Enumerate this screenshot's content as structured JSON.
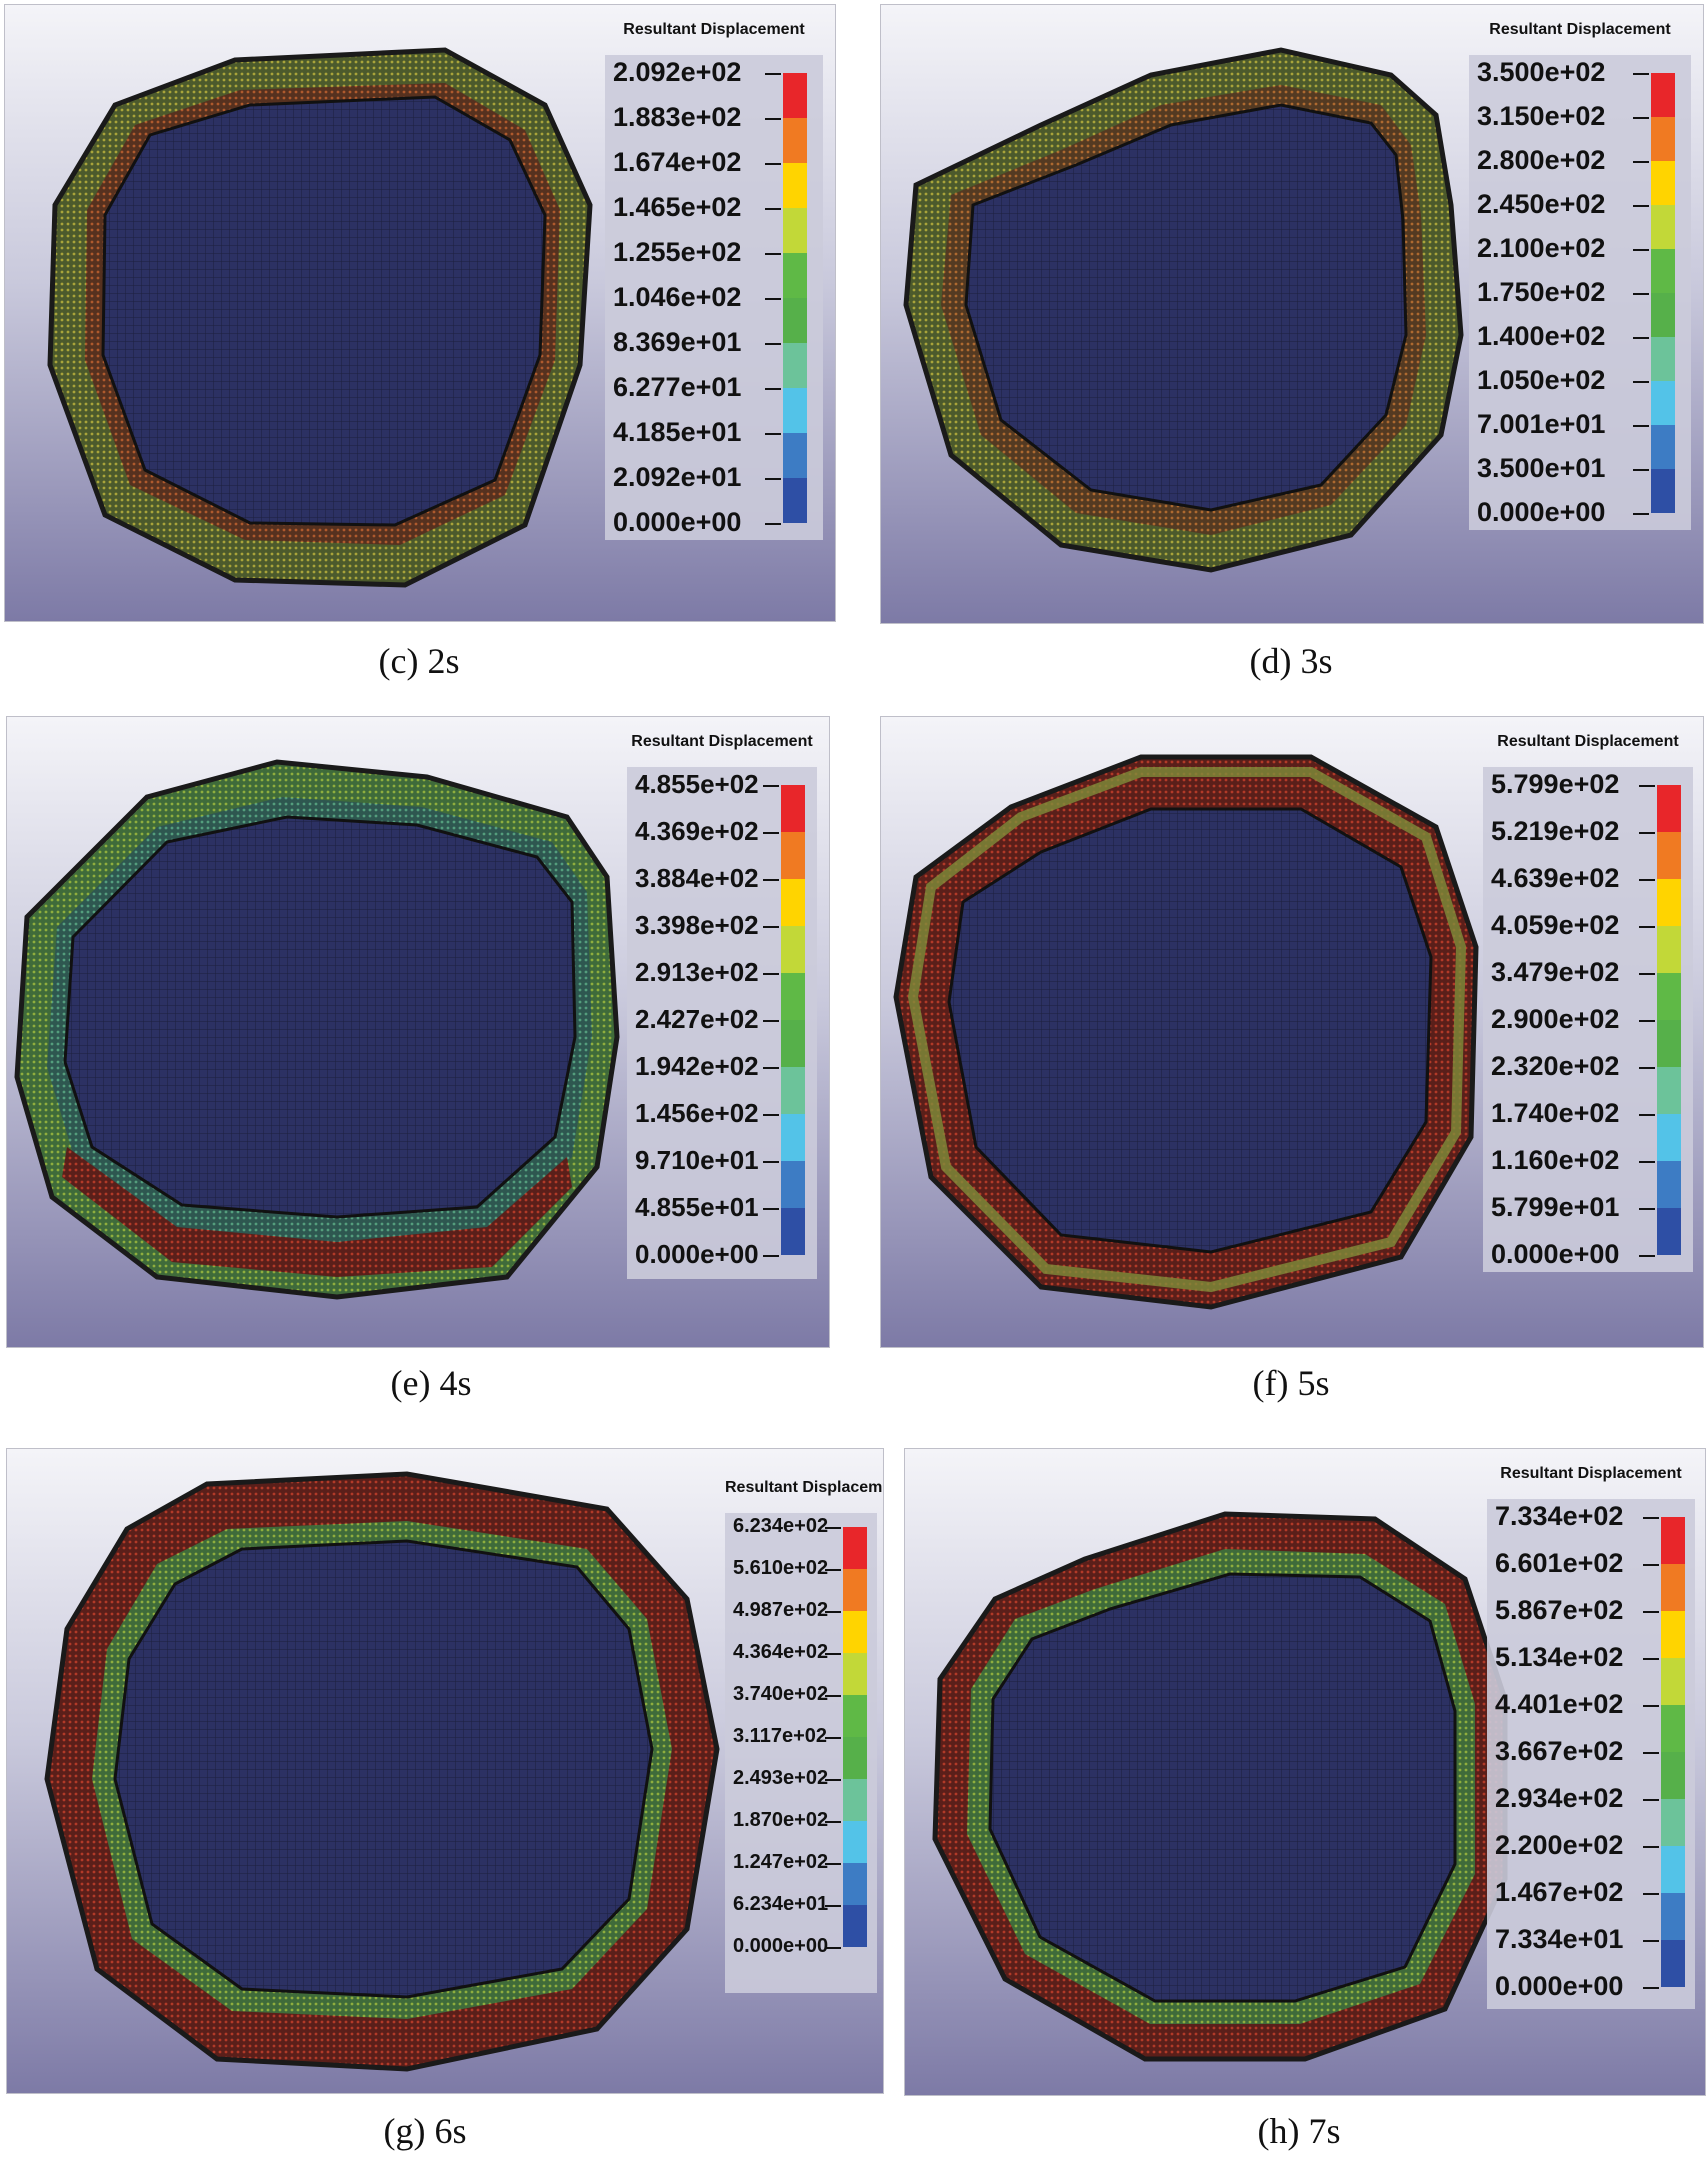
{
  "legend_title": "Resultant Displacement",
  "colors": [
    "#e8262a",
    "#f07a22",
    "#ffd400",
    "#c2d838",
    "#5fb946",
    "#56b04a",
    "#6cc39a",
    "#53c3e8",
    "#3d7cc4",
    "#2e4fa5"
  ],
  "panels": [
    {
      "caption": "(c) 2s",
      "values": [
        "2.092e+02",
        "1.883e+02",
        "1.674e+02",
        "1.465e+02",
        "1.255e+02",
        "1.046e+02",
        "8.369e+01",
        "6.277e+01",
        "4.185e+01",
        "2.092e+01",
        "0.000e+00"
      ]
    },
    {
      "caption": "(d) 3s",
      "values": [
        "3.500e+02",
        "3.150e+02",
        "2.800e+02",
        "2.450e+02",
        "2.100e+02",
        "1.750e+02",
        "1.400e+02",
        "1.050e+02",
        "7.001e+01",
        "3.500e+01",
        "0.000e+00"
      ]
    },
    {
      "caption": "(e) 4s",
      "values": [
        "4.855e+02",
        "4.369e+02",
        "3.884e+02",
        "3.398e+02",
        "2.913e+02",
        "2.427e+02",
        "1.942e+02",
        "1.456e+02",
        "9.710e+01",
        "4.855e+01",
        "0.000e+00"
      ]
    },
    {
      "caption": "(f) 5s",
      "values": [
        "5.799e+02",
        "5.219e+02",
        "4.639e+02",
        "4.059e+02",
        "3.479e+02",
        "2.900e+02",
        "2.320e+02",
        "1.740e+02",
        "1.160e+02",
        "5.799e+01",
        "0.000e+00"
      ]
    },
    {
      "caption": "(g) 6s",
      "values": [
        "6.234e+02",
        "5.610e+02",
        "4.987e+02",
        "4.364e+02",
        "3.740e+02",
        "3.117e+02",
        "2.493e+02",
        "1.870e+02",
        "1.247e+02",
        "6.234e+01",
        "0.000e+00"
      ]
    },
    {
      "caption": "(h) 7s",
      "values": [
        "7.334e+02",
        "6.601e+02",
        "5.867e+02",
        "5.134e+02",
        "4.401e+02",
        "3.667e+02",
        "2.934e+02",
        "2.200e+02",
        "1.467e+02",
        "7.334e+01",
        "0.000e+00"
      ]
    }
  ]
}
